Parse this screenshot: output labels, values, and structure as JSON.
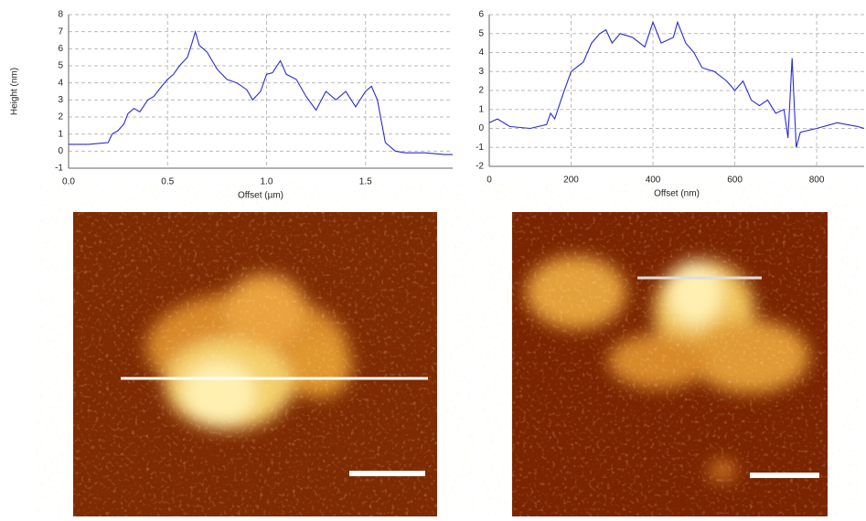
{
  "chart_data": [
    {
      "type": "line",
      "x_label": "Offset (µm)",
      "y_label": "Height (nm)",
      "xlim": [
        0,
        1.94
      ],
      "ylim": [
        -1,
        8
      ],
      "xticks": [
        {
          "value": 0,
          "label": "0.0"
        },
        0.5,
        {
          "value": 1,
          "label": "1.0"
        },
        1.5
      ],
      "yticks": [
        -1,
        0,
        1,
        2,
        3,
        4,
        5,
        6,
        7,
        8
      ],
      "grid": true,
      "x": [
        0,
        0.05,
        0.1,
        0.15,
        0.2,
        0.22,
        0.25,
        0.28,
        0.3,
        0.33,
        0.36,
        0.4,
        0.43,
        0.47,
        0.5,
        0.53,
        0.56,
        0.6,
        0.62,
        0.64,
        0.66,
        0.7,
        0.75,
        0.8,
        0.85,
        0.9,
        0.93,
        0.97,
        1.0,
        1.03,
        1.07,
        1.1,
        1.15,
        1.2,
        1.25,
        1.3,
        1.35,
        1.4,
        1.45,
        1.5,
        1.53,
        1.56,
        1.6,
        1.65,
        1.7,
        1.8,
        1.9,
        1.94
      ],
      "series": [
        {
          "color": "#2a2ad8",
          "values": [
            0.4,
            0.4,
            0.4,
            0.45,
            0.5,
            1.0,
            1.2,
            1.6,
            2.2,
            2.5,
            2.3,
            3.0,
            3.2,
            3.8,
            4.2,
            4.5,
            5.0,
            5.5,
            6.2,
            7.0,
            6.2,
            5.8,
            4.8,
            4.2,
            4.0,
            3.6,
            3.0,
            3.5,
            4.5,
            4.6,
            5.3,
            4.5,
            4.2,
            3.2,
            2.4,
            3.5,
            3.0,
            3.5,
            2.6,
            3.5,
            3.8,
            3.0,
            0.5,
            0.0,
            -0.1,
            -0.1,
            -0.2,
            -0.2
          ]
        }
      ]
    },
    {
      "type": "line",
      "x_label": "Offset (nm)",
      "xlim": [
        0,
        916
      ],
      "ylim": [
        -2,
        6
      ],
      "xticks": [
        0,
        200,
        400,
        600,
        800
      ],
      "yticks": [
        -2,
        -1,
        0,
        1,
        2,
        3,
        4,
        5,
        6
      ],
      "grid": true,
      "x": [
        0,
        20,
        50,
        100,
        140,
        150,
        160,
        180,
        200,
        230,
        250,
        270,
        285,
        300,
        320,
        350,
        380,
        400,
        420,
        450,
        460,
        480,
        500,
        520,
        550,
        580,
        600,
        620,
        640,
        660,
        680,
        700,
        720,
        730,
        740,
        750,
        760,
        800,
        850,
        900,
        916
      ],
      "series": [
        {
          "color": "#2a2ad8",
          "values": [
            0.3,
            0.5,
            0.1,
            0,
            0.2,
            0.8,
            0.5,
            1.8,
            3.0,
            3.5,
            4.5,
            5.0,
            5.2,
            4.5,
            5.0,
            4.8,
            4.3,
            5.6,
            4.5,
            4.8,
            5.6,
            4.5,
            4.0,
            3.2,
            3.0,
            2.5,
            2.0,
            2.5,
            1.5,
            1.2,
            1.5,
            0.8,
            1.0,
            -0.5,
            3.7,
            -1.0,
            -0.2,
            0,
            0.3,
            0.1,
            0
          ]
        }
      ]
    }
  ]
}
